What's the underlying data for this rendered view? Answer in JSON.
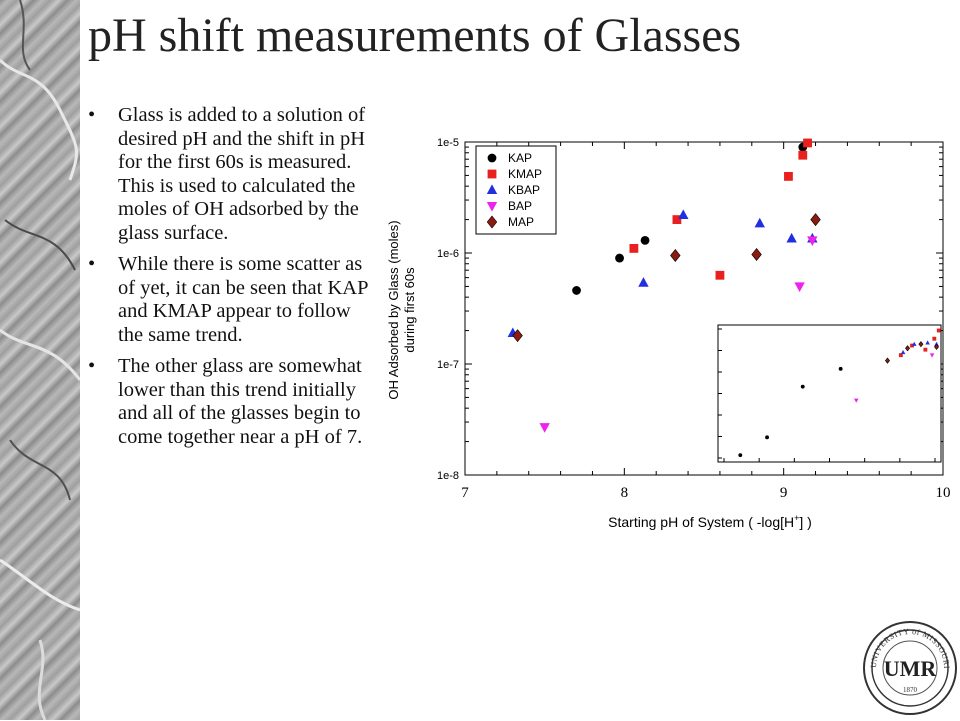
{
  "slide": {
    "title": "pH shift measurements of Glasses",
    "bullets": [
      "Glass is added to a solution of desired pH and the shift in pH for the first 60s is measured.  This is used to calculated the moles of OH adsorbed by the glass surface.",
      "While there is some scatter as of yet, it can be seen that KAP and KMAP appear to follow the same trend.",
      "The other glass are somewhat lower than this trend initially and all of the glasses begin to come together near a pH of 7."
    ]
  },
  "logo": {
    "text": "UNIVERSITY of MISSOURI-ROLLA",
    "monogram": "UMR",
    "year": "1870"
  },
  "chart_data": {
    "type": "scatter",
    "xlabel_parts": [
      "Starting pH of System ( -log[H",
      "+",
      "] )"
    ],
    "ylabel_lines": [
      "OH Adsorbed by Glass (moles)",
      "during first 60s"
    ],
    "xlim": [
      7,
      10
    ],
    "ylim": [
      1e-08,
      1e-05
    ],
    "yscale": "log",
    "xticks": [
      7,
      8,
      9,
      10
    ],
    "ytick_labels": [
      "1e-8",
      "1e-7",
      "1e-6",
      "1e-5"
    ],
    "legend_position": "top-left",
    "series": [
      {
        "name": "KAP",
        "marker": "circle",
        "color": "#000000",
        "points": [
          [
            7.7,
            4.6e-07
          ],
          [
            7.97,
            9e-07
          ],
          [
            8.13,
            1.3e-06
          ],
          [
            9.12,
            9e-06
          ]
        ]
      },
      {
        "name": "KMAP",
        "marker": "square",
        "color": "#e8201e",
        "points": [
          [
            8.06,
            1.1e-06
          ],
          [
            8.33,
            2e-06
          ],
          [
            8.6,
            6.3e-07
          ],
          [
            9.03,
            4.9e-06
          ],
          [
            9.12,
            7.6e-06
          ],
          [
            9.15,
            9.8e-06
          ]
        ]
      },
      {
        "name": "KBAP",
        "marker": "triangle-up",
        "color": "#2030e0",
        "points": [
          [
            7.3,
            1.9e-07
          ],
          [
            8.12,
            5.4e-07
          ],
          [
            8.37,
            2.2e-06
          ],
          [
            8.85,
            1.85e-06
          ],
          [
            9.05,
            1.35e-06
          ],
          [
            9.18,
            1.35e-06
          ]
        ]
      },
      {
        "name": "BAP",
        "marker": "triangle-down",
        "color": "#ee22ee",
        "points": [
          [
            7.5,
            2.7e-08
          ],
          [
            9.1,
            5e-07
          ],
          [
            9.18,
            1.3e-06
          ]
        ]
      },
      {
        "name": "MAP",
        "marker": "diamond",
        "color": "#8b1a10",
        "points": [
          [
            7.33,
            1.8e-07
          ],
          [
            8.32,
            9.5e-07
          ],
          [
            8.83,
            9.7e-07
          ],
          [
            9.2,
            2e-06
          ]
        ]
      }
    ],
    "inset": {
      "series": [
        {
          "name": "KAP",
          "points": [
            [
              0.1,
              0.05
            ],
            [
              0.22,
              0.18
            ],
            [
              0.38,
              0.55
            ],
            [
              0.55,
              0.68
            ]
          ]
        },
        {
          "name": "KMAP",
          "points": [
            [
              0.82,
              0.78
            ],
            [
              0.87,
              0.85
            ],
            [
              0.93,
              0.82
            ],
            [
              0.97,
              0.9
            ],
            [
              0.99,
              0.96
            ]
          ]
        },
        {
          "name": "KBAP",
          "points": [
            [
              0.83,
              0.8
            ],
            [
              0.88,
              0.86
            ],
            [
              0.94,
              0.87
            ],
            [
              0.98,
              0.86
            ]
          ]
        },
        {
          "name": "BAP",
          "points": [
            [
              0.62,
              0.45
            ],
            [
              0.96,
              0.78
            ]
          ]
        },
        {
          "name": "MAP",
          "points": [
            [
              0.76,
              0.74
            ],
            [
              0.85,
              0.83
            ],
            [
              0.91,
              0.86
            ],
            [
              0.98,
              0.84
            ]
          ]
        }
      ]
    }
  }
}
